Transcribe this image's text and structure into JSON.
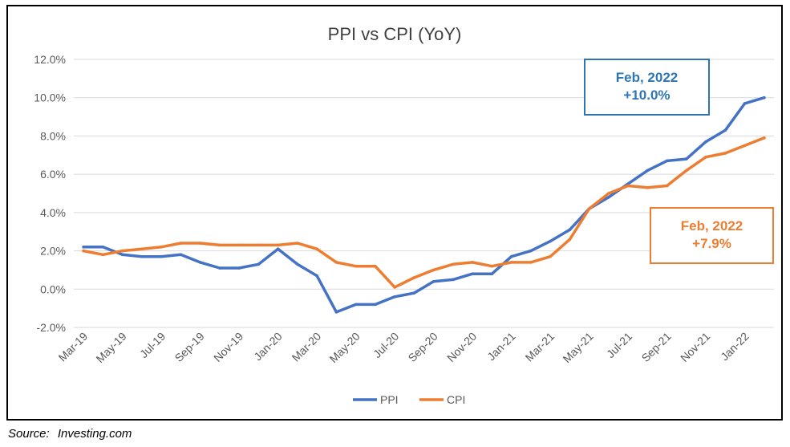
{
  "chart_data": {
    "type": "line",
    "title": "PPI vs CPI (YoY)",
    "xlabel": "",
    "ylabel": "",
    "ylim": [
      -2.0,
      12.0
    ],
    "yticks": [
      "-2.0%",
      "0.0%",
      "2.0%",
      "4.0%",
      "6.0%",
      "8.0%",
      "10.0%",
      "12.0%"
    ],
    "ytick_values": [
      -2,
      0,
      2,
      4,
      6,
      8,
      10,
      12
    ],
    "grid": "horizontal",
    "legend_position": "bottom",
    "categories": [
      "Mar-19",
      "Apr-19",
      "May-19",
      "Jun-19",
      "Jul-19",
      "Aug-19",
      "Sep-19",
      "Oct-19",
      "Nov-19",
      "Dec-19",
      "Jan-20",
      "Feb-20",
      "Mar-20",
      "Apr-20",
      "May-20",
      "Jun-20",
      "Jul-20",
      "Aug-20",
      "Sep-20",
      "Oct-20",
      "Nov-20",
      "Dec-20",
      "Jan-21",
      "Feb-21",
      "Mar-21",
      "Apr-21",
      "May-21",
      "Jun-21",
      "Jul-21",
      "Aug-21",
      "Sep-21",
      "Oct-21",
      "Nov-21",
      "Dec-21",
      "Jan-22",
      "Feb-22"
    ],
    "xtick_labels": [
      "Mar-19",
      "May-19",
      "Jul-19",
      "Sep-19",
      "Nov-19",
      "Jan-20",
      "Mar-20",
      "May-20",
      "Jul-20",
      "Sep-20",
      "Nov-20",
      "Jan-21",
      "Mar-21",
      "May-21",
      "Jul-21",
      "Sep-21",
      "Nov-21",
      "Jan-22"
    ],
    "series": [
      {
        "name": "PPI",
        "color": "#4472c4",
        "values": [
          2.2,
          2.2,
          1.8,
          1.7,
          1.7,
          1.8,
          1.4,
          1.1,
          1.1,
          1.3,
          2.1,
          1.3,
          0.7,
          -1.2,
          -0.8,
          -0.8,
          -0.4,
          -0.2,
          0.4,
          0.5,
          0.8,
          0.8,
          1.7,
          2.0,
          2.5,
          3.1,
          4.2,
          4.8,
          5.5,
          6.2,
          6.7,
          6.8,
          7.7,
          8.3,
          9.7,
          10.0
        ]
      },
      {
        "name": "CPI",
        "color": "#ed7d31",
        "values": [
          2.0,
          1.8,
          2.0,
          2.1,
          2.2,
          2.4,
          2.4,
          2.3,
          2.3,
          2.3,
          2.3,
          2.4,
          2.1,
          1.4,
          1.2,
          1.2,
          0.1,
          0.6,
          1.0,
          1.3,
          1.4,
          1.2,
          1.4,
          1.4,
          1.7,
          2.6,
          4.2,
          5.0,
          5.4,
          5.3,
          5.4,
          6.2,
          6.9,
          7.1,
          7.5,
          7.9
        ]
      }
    ],
    "annotations": [
      {
        "series": "PPI",
        "line1": "Feb, 2022",
        "line2": "+10.0%",
        "color": "#2e75b6"
      },
      {
        "series": "CPI",
        "line1": "Feb, 2022",
        "line2": "+7.9%",
        "color": "#ed7d31"
      }
    ]
  },
  "source": {
    "label": "Source:",
    "value": "Investing.com"
  },
  "colors": {
    "grid": "#d9d9d9",
    "text": "#595959",
    "title": "#404040"
  }
}
